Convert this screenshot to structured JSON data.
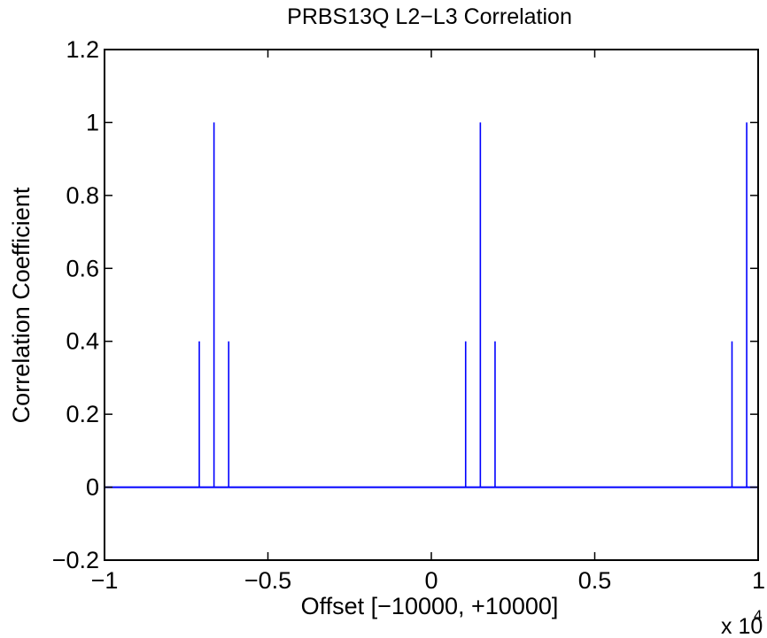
{
  "chart_data": {
    "type": "line",
    "title": "PRBS13Q L2−L3 Correlation",
    "xlabel": "Offset [−10000, +10000]",
    "ylabel": "Correlation Coefficient",
    "x_exponent_base": "x 10",
    "x_exponent_power": "4",
    "xlim": [
      -10000,
      10000
    ],
    "ylim": [
      -0.2,
      1.2
    ],
    "xticks": [
      -10000,
      -5000,
      0,
      5000,
      10000
    ],
    "xtick_labels": [
      "−1",
      "−0.5",
      "0",
      "0.5",
      "1"
    ],
    "yticks": [
      -0.2,
      0,
      0.2,
      0.4,
      0.6,
      0.8,
      1,
      1.2
    ],
    "ytick_labels": [
      "−0.2",
      "0",
      "0.2",
      "0.4",
      "0.6",
      "0.8",
      "1",
      "1.2"
    ],
    "grid": false,
    "line_color": "#0000ff",
    "baseline": 0,
    "series": [
      {
        "spikes": [
          {
            "x": -7100,
            "y": 0.4
          },
          {
            "x": -6650,
            "y": 1.0
          },
          {
            "x": -6200,
            "y": 0.4
          },
          {
            "x": 1050,
            "y": 0.4
          },
          {
            "x": 1500,
            "y": 1.0
          },
          {
            "x": 1950,
            "y": 0.4
          },
          {
            "x": 9200,
            "y": 0.4
          },
          {
            "x": 9650,
            "y": 1.0
          },
          {
            "x": 10000,
            "y": 0.4
          }
        ]
      }
    ]
  }
}
